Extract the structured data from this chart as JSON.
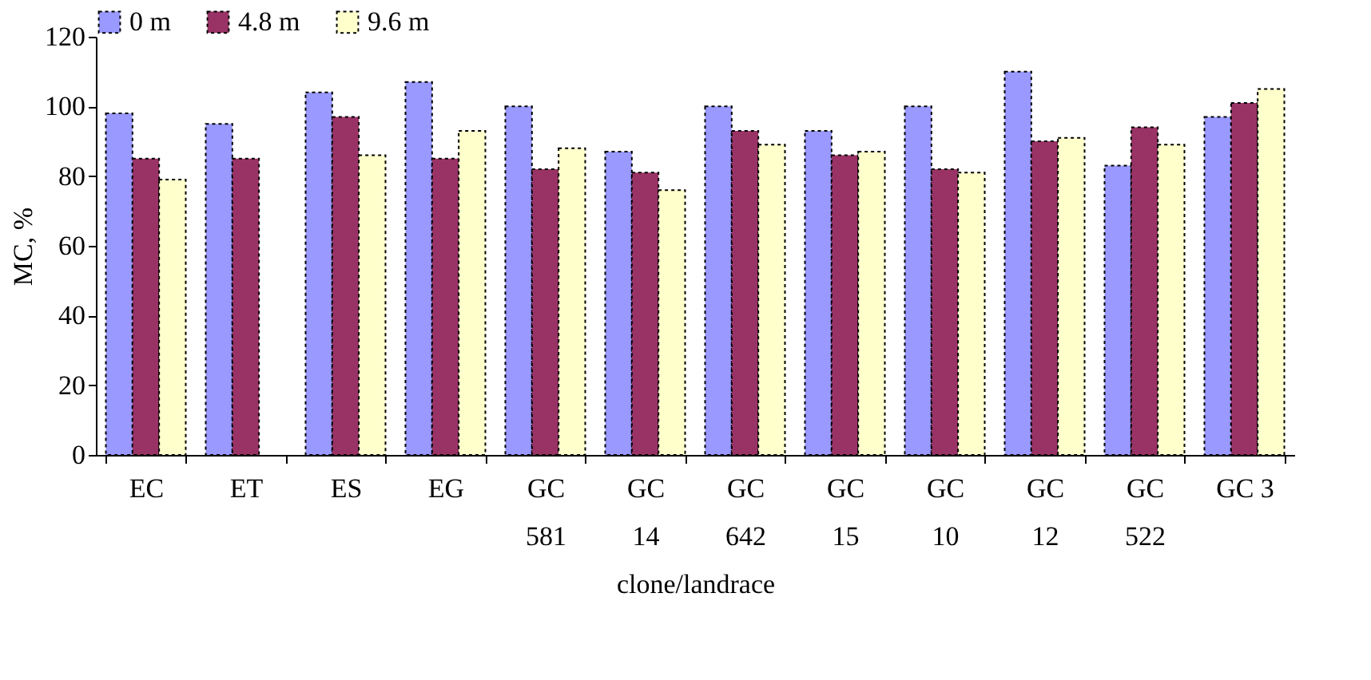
{
  "chart_data": {
    "type": "bar",
    "xlabel": "clone/landrace",
    "ylabel": "MC, %",
    "categories": [
      "EC",
      "ET",
      "ES",
      "EG",
      "GC\n581",
      "GC\n14",
      "GC\n642",
      "GC\n15",
      "GC\n10",
      "GC\n12",
      "GC\n522",
      "GC 3"
    ],
    "series": [
      {
        "name": "0 m",
        "color": "#9999ff",
        "values": [
          98,
          95,
          104,
          107,
          100,
          87,
          100,
          93,
          100,
          110,
          83,
          97
        ]
      },
      {
        "name": "4.8 m",
        "color": "#993366",
        "values": [
          85,
          85,
          97,
          85,
          82,
          81,
          93,
          86,
          82,
          90,
          94,
          101
        ]
      },
      {
        "name": "9.6 m",
        "color": "#ffffcc",
        "values": [
          79,
          null,
          86,
          93,
          88,
          76,
          89,
          87,
          81,
          91,
          89,
          105
        ]
      }
    ],
    "ylim": [
      0,
      120
    ],
    "yticks": [
      0,
      20,
      40,
      60,
      80,
      100,
      120
    ],
    "grid": false,
    "legend": "top"
  }
}
